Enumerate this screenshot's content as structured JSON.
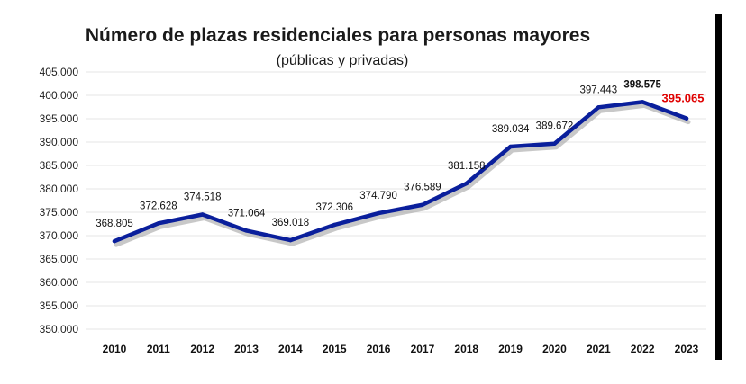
{
  "chart_data": {
    "type": "line",
    "title": "Número de plazas residenciales para personas mayores",
    "subtitle": "(públicas y privadas)",
    "xlabel": "",
    "ylabel": "",
    "categories": [
      "2010",
      "2011",
      "2012",
      "2013",
      "2014",
      "2015",
      "2016",
      "2017",
      "2018",
      "2019",
      "2020",
      "2021",
      "2022",
      "2023"
    ],
    "series": [
      {
        "values": [
          368805,
          372628,
          374518,
          371064,
          369018,
          372306,
          374790,
          376589,
          381158,
          389034,
          389672,
          397443,
          398575,
          395065
        ],
        "data_labels": [
          "368.805",
          "372.628",
          "374.518",
          "371.064",
          "369.018",
          "372.306",
          "374.790",
          "376.589",
          "381.158",
          "389.034",
          "389.672",
          "397.443",
          "398.575",
          "395.065"
        ],
        "color": "#0a1f9c",
        "shadow_color": "#9a9a9a"
      }
    ],
    "y_ticks": [
      "350.000",
      "355.000",
      "360.000",
      "365.000",
      "370.000",
      "375.000",
      "380.000",
      "385.000",
      "390.000",
      "395.000",
      "400.000",
      "405.000"
    ],
    "ylim": [
      350000,
      405000
    ],
    "grid": true,
    "legend": "none",
    "highlight": {
      "index": 13,
      "color": "#e00000"
    },
    "bold_label_index": 12
  }
}
